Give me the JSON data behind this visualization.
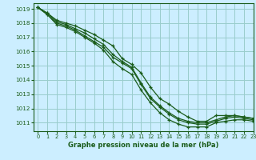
{
  "title": "Graphe pression niveau de la mer (hPa)",
  "bg_color": "#cceeff",
  "grid_color": "#99cccc",
  "line_color": "#1a5c1a",
  "xlim": [
    -0.5,
    23
  ],
  "ylim": [
    1010.4,
    1019.4
  ],
  "yticks": [
    1011,
    1012,
    1013,
    1014,
    1015,
    1016,
    1017,
    1018,
    1019
  ],
  "xticks": [
    0,
    1,
    2,
    3,
    4,
    5,
    6,
    7,
    8,
    9,
    10,
    11,
    12,
    13,
    14,
    15,
    16,
    17,
    18,
    19,
    20,
    21,
    22,
    23
  ],
  "series": [
    [
      1019.1,
      1018.7,
      1018.2,
      1018.0,
      1017.8,
      1017.5,
      1017.2,
      1016.8,
      1016.4,
      1015.5,
      1015.1,
      1014.5,
      1013.5,
      1012.7,
      1012.3,
      1011.8,
      1011.4,
      1011.1,
      1011.1,
      1011.5,
      1011.5,
      1011.5,
      1011.4,
      1011.3
    ],
    [
      1019.1,
      1018.6,
      1018.0,
      1017.8,
      1017.5,
      1017.1,
      1016.7,
      1016.3,
      1015.6,
      1015.2,
      1014.8,
      1013.7,
      1012.7,
      1012.1,
      1011.6,
      1011.2,
      1011.0,
      1010.9,
      1010.9,
      1011.1,
      1011.3,
      1011.4,
      1011.3,
      1011.2
    ],
    [
      1019.1,
      1018.6,
      1017.9,
      1017.7,
      1017.4,
      1017.0,
      1016.6,
      1016.1,
      1015.3,
      1014.8,
      1014.4,
      1013.3,
      1012.4,
      1011.7,
      1011.2,
      1010.9,
      1010.7,
      1010.7,
      1010.7,
      1011.0,
      1011.1,
      1011.2,
      1011.2,
      1011.1
    ],
    [
      1019.1,
      1018.7,
      1018.1,
      1017.9,
      1017.6,
      1017.3,
      1016.9,
      1016.5,
      1015.8,
      1015.3,
      1014.9,
      1013.8,
      1012.8,
      1012.2,
      1011.7,
      1011.3,
      1011.1,
      1011.0,
      1011.0,
      1011.2,
      1011.4,
      1011.5,
      1011.4,
      1011.3
    ]
  ]
}
